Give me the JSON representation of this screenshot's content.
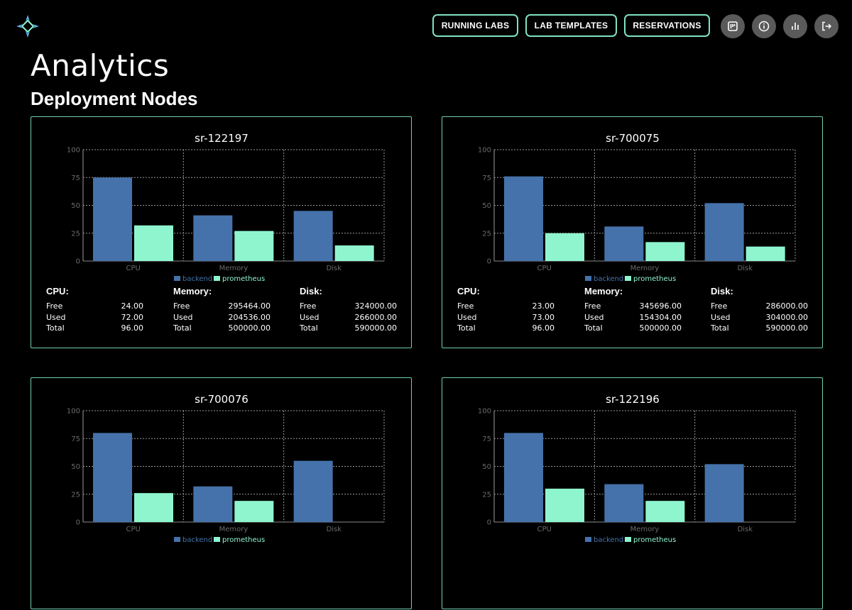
{
  "header": {
    "logo_icon": "diamond-logo-icon",
    "nav": [
      "RUNNING LABS",
      "LAB TEMPLATES",
      "RESERVATIONS"
    ],
    "icons": [
      "board-icon",
      "info-icon",
      "bar-chart-icon",
      "logout-icon"
    ],
    "accent_color": "#7fe3c3"
  },
  "page": {
    "title": "Analytics",
    "section": "Deployment Nodes"
  },
  "colors": {
    "backend": "#4572aa",
    "prometheus": "#8ef5cf",
    "card_border": "#6fcfae"
  },
  "nodes": [
    {
      "name": "sr-122197",
      "stats": {
        "cpu": {
          "label": "CPU:",
          "free": "24.00",
          "used": "72.00",
          "total": "96.00"
        },
        "memory": {
          "label": "Memory:",
          "free": "295464.00",
          "used": "204536.00",
          "total": "500000.00"
        },
        "disk": {
          "label": "Disk:",
          "free": "324000.00",
          "used": "266000.00",
          "total": "590000.00"
        }
      }
    },
    {
      "name": "sr-700075",
      "stats": {
        "cpu": {
          "label": "CPU:",
          "free": "23.00",
          "used": "73.00",
          "total": "96.00"
        },
        "memory": {
          "label": "Memory:",
          "free": "345696.00",
          "used": "154304.00",
          "total": "500000.00"
        },
        "disk": {
          "label": "Disk:",
          "free": "286000.00",
          "used": "304000.00",
          "total": "590000.00"
        }
      }
    },
    {
      "name": "sr-700076"
    },
    {
      "name": "sr-122196"
    }
  ],
  "stat_row_labels": [
    "Free",
    "Used",
    "Total"
  ],
  "chart_data": [
    {
      "type": "bar",
      "title": "sr-122197",
      "categories": [
        "CPU",
        "Memory",
        "Disk"
      ],
      "series": [
        {
          "name": "backend",
          "values": [
            75,
            41,
            45
          ]
        },
        {
          "name": "prometheus",
          "values": [
            32,
            27,
            14
          ]
        }
      ],
      "ylim": [
        0,
        100
      ],
      "yticks": [
        0,
        25,
        50,
        75,
        100
      ],
      "grid": true,
      "legend": "bottom"
    },
    {
      "type": "bar",
      "title": "sr-700075",
      "categories": [
        "CPU",
        "Memory",
        "Disk"
      ],
      "series": [
        {
          "name": "backend",
          "values": [
            76,
            31,
            52
          ]
        },
        {
          "name": "prometheus",
          "values": [
            25,
            17,
            13
          ]
        }
      ],
      "ylim": [
        0,
        100
      ],
      "yticks": [
        0,
        25,
        50,
        75,
        100
      ],
      "grid": true,
      "legend": "bottom"
    },
    {
      "type": "bar",
      "title": "sr-700076",
      "categories": [
        "CPU",
        "Memory",
        "Disk"
      ],
      "series": [
        {
          "name": "backend",
          "values": [
            80,
            32,
            55
          ]
        },
        {
          "name": "prometheus",
          "values": [
            26,
            19,
            null
          ]
        }
      ],
      "ylim": [
        0,
        100
      ],
      "yticks": [
        0,
        25,
        50,
        75,
        100
      ],
      "grid": true,
      "legend": "bottom"
    },
    {
      "type": "bar",
      "title": "sr-122196",
      "categories": [
        "CPU",
        "Memory",
        "Disk"
      ],
      "series": [
        {
          "name": "backend",
          "values": [
            80,
            34,
            52
          ]
        },
        {
          "name": "prometheus",
          "values": [
            30,
            19,
            null
          ]
        }
      ],
      "ylim": [
        0,
        100
      ],
      "yticks": [
        0,
        25,
        50,
        75,
        100
      ],
      "grid": true,
      "legend": "bottom"
    }
  ]
}
